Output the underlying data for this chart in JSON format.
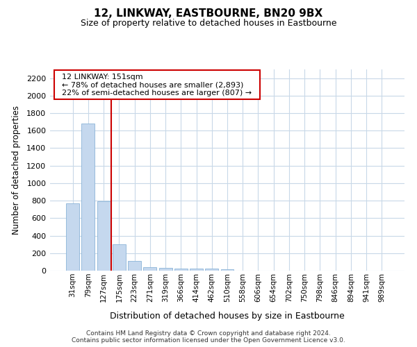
{
  "title": "12, LINKWAY, EASTBOURNE, BN20 9BX",
  "subtitle": "Size of property relative to detached houses in Eastbourne",
  "xlabel": "Distribution of detached houses by size in Eastbourne",
  "ylabel": "Number of detached properties",
  "categories": [
    "31sqm",
    "79sqm",
    "127sqm",
    "175sqm",
    "223sqm",
    "271sqm",
    "319sqm",
    "366sqm",
    "414sqm",
    "462sqm",
    "510sqm",
    "558sqm",
    "606sqm",
    "654sqm",
    "702sqm",
    "750sqm",
    "798sqm",
    "846sqm",
    "894sqm",
    "941sqm",
    "989sqm"
  ],
  "values": [
    770,
    1680,
    795,
    300,
    112,
    42,
    32,
    22,
    20,
    22,
    18,
    0,
    0,
    0,
    0,
    0,
    0,
    0,
    0,
    0,
    0
  ],
  "bar_color": "#c5d8ee",
  "bar_edge_color": "#8ab4d8",
  "annotation_text_line1": "12 LINKWAY: 151sqm",
  "annotation_text_line2": "← 78% of detached houses are smaller (2,893)",
  "annotation_text_line3": "22% of semi-detached houses are larger (807) →",
  "annotation_box_facecolor": "#ffffff",
  "annotation_box_edgecolor": "#cc0000",
  "vline_color": "#cc0000",
  "vline_x": 2.5,
  "ylim": [
    0,
    2300
  ],
  "yticks": [
    0,
    200,
    400,
    600,
    800,
    1000,
    1200,
    1400,
    1600,
    1800,
    2000,
    2200
  ],
  "plot_bg_color": "#ffffff",
  "fig_bg_color": "#ffffff",
  "grid_color": "#c8d8e8",
  "footer_line1": "Contains HM Land Registry data © Crown copyright and database right 2024.",
  "footer_line2": "Contains public sector information licensed under the Open Government Licence v3.0."
}
